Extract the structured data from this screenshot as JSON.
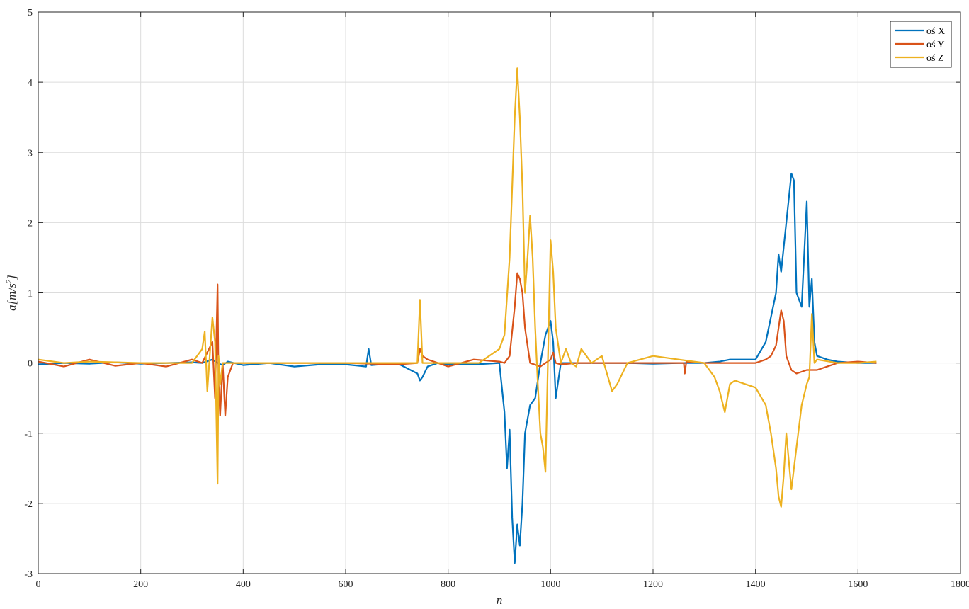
{
  "chart_data": {
    "type": "line",
    "title": "",
    "xlabel": "n",
    "ylabel": "a[m/s^2]",
    "ylabel_parts": {
      "pre": "a[m/s",
      "sup": "2",
      "post": "]"
    },
    "xlim": [
      0,
      1800
    ],
    "ylim": [
      -3,
      5
    ],
    "xticks": [
      0,
      200,
      400,
      600,
      800,
      1000,
      1200,
      1400,
      1600,
      1800
    ],
    "yticks": [
      -3,
      -2,
      -1,
      0,
      1,
      2,
      3,
      4,
      5
    ],
    "grid": true,
    "legend_position": "top-right",
    "series": [
      {
        "name": "oś X",
        "color": "#0072BD",
        "x": [
          0,
          50,
          100,
          150,
          200,
          250,
          300,
          320,
          340,
          350,
          360,
          370,
          400,
          450,
          500,
          550,
          600,
          640,
          645,
          650,
          700,
          740,
          745,
          750,
          760,
          780,
          800,
          850,
          900,
          910,
          915,
          920,
          925,
          930,
          935,
          940,
          945,
          950,
          960,
          970,
          980,
          990,
          1000,
          1005,
          1010,
          1020,
          1050,
          1100,
          1150,
          1200,
          1250,
          1300,
          1330,
          1350,
          1380,
          1400,
          1420,
          1440,
          1445,
          1450,
          1460,
          1470,
          1475,
          1480,
          1490,
          1500,
          1505,
          1510,
          1515,
          1520,
          1540,
          1560,
          1600,
          1636
        ],
        "y": [
          -0.02,
          0.0,
          -0.01,
          0.01,
          -0.01,
          0.0,
          0.01,
          0.0,
          0.05,
          0.0,
          -0.03,
          0.02,
          -0.03,
          0.0,
          -0.05,
          -0.02,
          -0.02,
          -0.05,
          0.2,
          -0.03,
          0.0,
          -0.15,
          -0.25,
          -0.2,
          -0.05,
          0.0,
          -0.02,
          -0.02,
          0.0,
          -0.7,
          -1.5,
          -0.95,
          -2.2,
          -2.85,
          -2.3,
          -2.6,
          -2.0,
          -1.0,
          -0.6,
          -0.5,
          0.0,
          0.4,
          0.6,
          0.3,
          -0.5,
          0.0,
          0.0,
          0.0,
          0.0,
          -0.01,
          0.0,
          0.0,
          0.02,
          0.05,
          0.05,
          0.05,
          0.3,
          1.0,
          1.55,
          1.3,
          2.0,
          2.7,
          2.6,
          1.0,
          0.8,
          2.3,
          0.8,
          1.2,
          0.3,
          0.1,
          0.05,
          0.02,
          0.0,
          0.0
        ]
      },
      {
        "name": "oś Y",
        "color": "#D95319",
        "x": [
          0,
          50,
          100,
          150,
          200,
          250,
          300,
          320,
          340,
          345,
          350,
          352,
          355,
          360,
          365,
          370,
          380,
          400,
          500,
          600,
          700,
          740,
          745,
          750,
          760,
          780,
          800,
          850,
          900,
          910,
          920,
          930,
          935,
          940,
          945,
          950,
          960,
          980,
          1000,
          1005,
          1010,
          1020,
          1050,
          1100,
          1200,
          1260,
          1262,
          1265,
          1300,
          1400,
          1420,
          1430,
          1440,
          1450,
          1455,
          1460,
          1470,
          1480,
          1500,
          1520,
          1540,
          1560,
          1600,
          1636
        ],
        "y": [
          0.02,
          -0.05,
          0.05,
          -0.04,
          0.0,
          -0.05,
          0.05,
          0.0,
          0.3,
          -0.5,
          1.12,
          -0.3,
          -0.75,
          0.0,
          -0.75,
          -0.2,
          0.0,
          0.0,
          0.0,
          0.0,
          -0.02,
          0.0,
          0.2,
          0.1,
          0.05,
          0.0,
          -0.05,
          0.05,
          0.02,
          0.0,
          0.1,
          0.8,
          1.28,
          1.2,
          1.0,
          0.5,
          0.0,
          -0.05,
          0.05,
          0.15,
          0.0,
          -0.02,
          0.0,
          0.0,
          0.0,
          0.0,
          -0.15,
          0.02,
          0.0,
          0.0,
          0.05,
          0.1,
          0.25,
          0.75,
          0.6,
          0.1,
          -0.1,
          -0.15,
          -0.1,
          -0.1,
          -0.05,
          0.0,
          0.02,
          0.0
        ]
      },
      {
        "name": "oś Z",
        "color": "#EDB120",
        "x": [
          0,
          50,
          100,
          200,
          300,
          320,
          325,
          330,
          340,
          345,
          350,
          352,
          355,
          360,
          370,
          380,
          400,
          500,
          600,
          700,
          740,
          745,
          750,
          760,
          800,
          860,
          900,
          910,
          920,
          930,
          935,
          940,
          945,
          950,
          955,
          960,
          965,
          970,
          975,
          980,
          985,
          990,
          1000,
          1005,
          1010,
          1020,
          1030,
          1040,
          1050,
          1060,
          1080,
          1100,
          1120,
          1130,
          1150,
          1200,
          1250,
          1300,
          1320,
          1330,
          1340,
          1350,
          1360,
          1380,
          1400,
          1420,
          1430,
          1440,
          1445,
          1450,
          1455,
          1460,
          1470,
          1480,
          1490,
          1500,
          1505,
          1510,
          1515,
          1520,
          1560,
          1600,
          1636
        ],
        "y": [
          0.05,
          0.0,
          0.02,
          0.0,
          0.0,
          0.2,
          0.45,
          -0.4,
          0.65,
          0.3,
          -1.72,
          0.1,
          -0.3,
          0.0,
          0.0,
          0.0,
          0.0,
          0.0,
          0.0,
          0.0,
          0.0,
          0.9,
          0.0,
          0.0,
          0.0,
          0.0,
          0.2,
          0.4,
          1.5,
          3.5,
          4.2,
          3.5,
          2.5,
          1.0,
          1.5,
          2.1,
          1.5,
          0.5,
          -0.3,
          -1.0,
          -1.2,
          -1.55,
          1.75,
          1.3,
          0.5,
          0.0,
          0.2,
          0.0,
          -0.05,
          0.2,
          0.0,
          0.1,
          -0.4,
          -0.3,
          0.0,
          0.1,
          0.05,
          0.0,
          -0.2,
          -0.4,
          -0.7,
          -0.3,
          -0.25,
          -0.3,
          -0.35,
          -0.6,
          -1.0,
          -1.5,
          -1.9,
          -2.05,
          -1.6,
          -1.0,
          -1.8,
          -1.2,
          -0.6,
          -0.3,
          -0.2,
          0.7,
          0.0,
          0.05,
          0.0,
          0.0,
          0.02
        ]
      }
    ]
  }
}
